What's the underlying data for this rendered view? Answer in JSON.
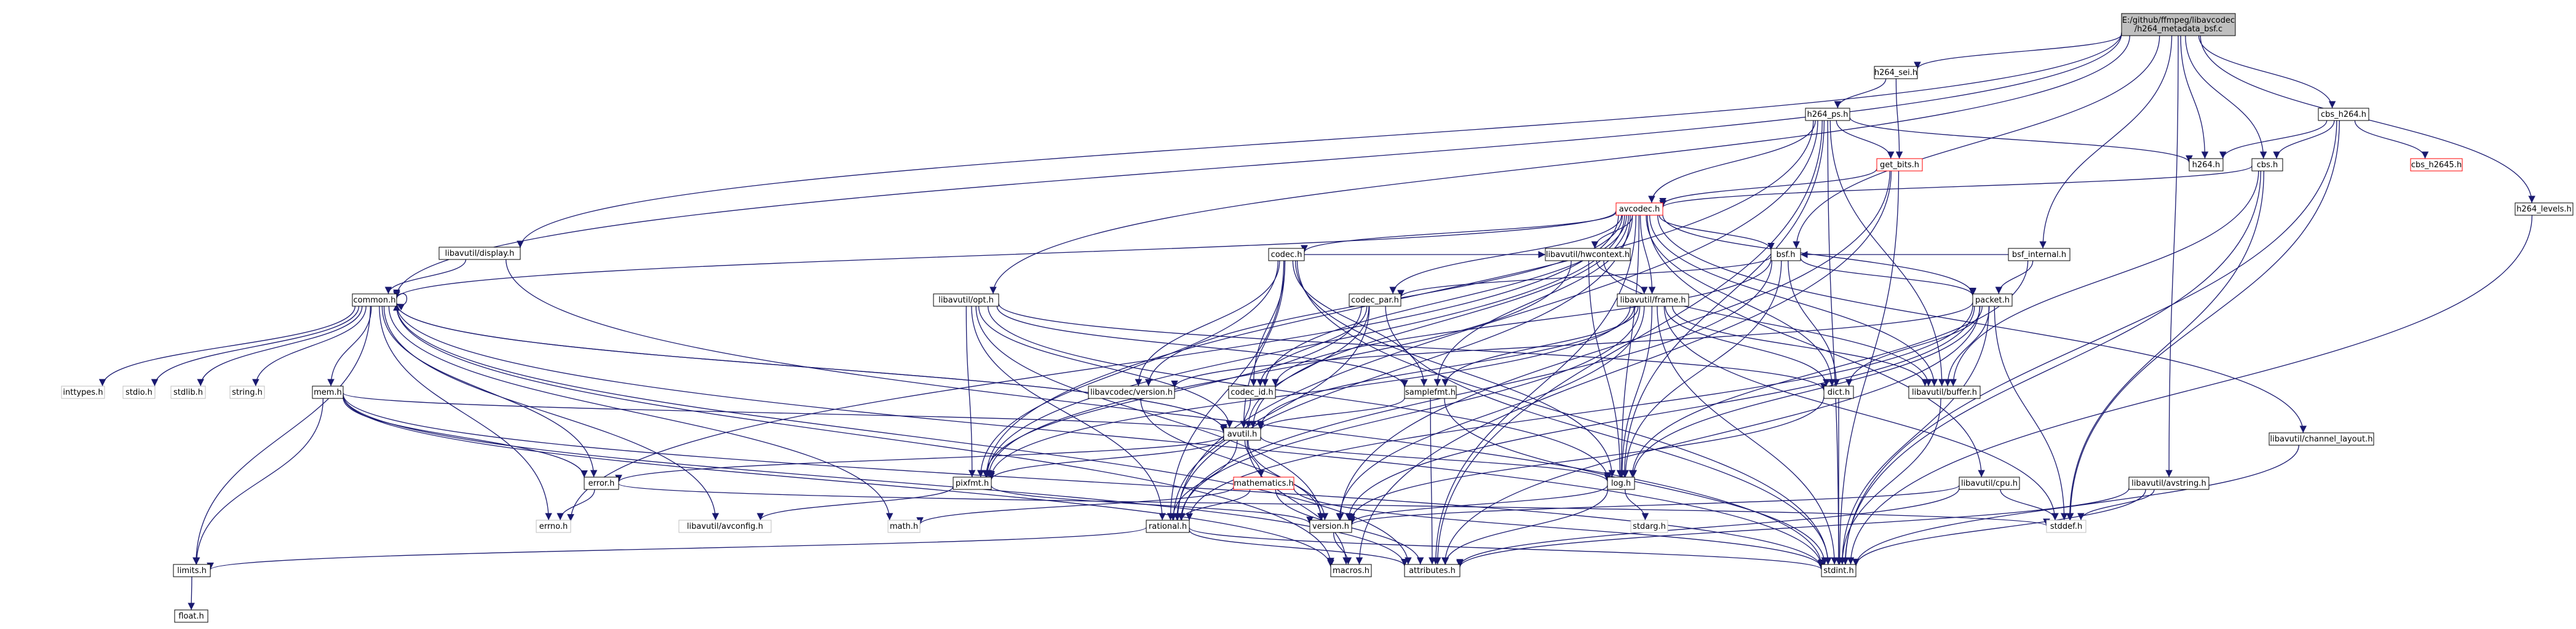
{
  "graph": {
    "root": "E:/github/ffmpeg/libavcodec/h264_metadata_bsf.c",
    "nodes": [
      {
        "id": "root",
        "lines": [
          "E:/github/ffmpeg/libavcodec",
          "/h264_metadata_bsf.c"
        ],
        "style": "root"
      },
      {
        "id": "h264_sei_h",
        "lines": [
          "h264_sei.h"
        ],
        "style": "normal"
      },
      {
        "id": "h264_ps_h",
        "lines": [
          "h264_ps.h"
        ],
        "style": "normal"
      },
      {
        "id": "get_bits_h",
        "lines": [
          "get_bits.h"
        ],
        "style": "red"
      },
      {
        "id": "h264_h",
        "lines": [
          "h264.h"
        ],
        "style": "normal"
      },
      {
        "id": "cbs_h264_h",
        "lines": [
          "cbs_h264.h"
        ],
        "style": "normal"
      },
      {
        "id": "cbs_h",
        "lines": [
          "cbs.h"
        ],
        "style": "normal"
      },
      {
        "id": "cbs_h2645_h",
        "lines": [
          "cbs_h2645.h"
        ],
        "style": "red"
      },
      {
        "id": "h264_levels_h",
        "lines": [
          "h264_levels.h"
        ],
        "style": "normal"
      },
      {
        "id": "avcodec_h",
        "lines": [
          "avcodec.h"
        ],
        "style": "red"
      },
      {
        "id": "bsf_internal_h",
        "lines": [
          "bsf_internal.h"
        ],
        "style": "normal"
      },
      {
        "id": "codec_h",
        "lines": [
          "codec.h"
        ],
        "style": "normal"
      },
      {
        "id": "hwcontext_h",
        "lines": [
          "libavutil/hwcontext.h"
        ],
        "style": "normal"
      },
      {
        "id": "bsf_h",
        "lines": [
          "bsf.h"
        ],
        "style": "normal"
      },
      {
        "id": "display_h",
        "lines": [
          "libavutil/display.h"
        ],
        "style": "normal"
      },
      {
        "id": "common_h",
        "lines": [
          "common.h"
        ],
        "style": "normal"
      },
      {
        "id": "opt_h",
        "lines": [
          "libavutil/opt.h"
        ],
        "style": "normal"
      },
      {
        "id": "codec_par_h",
        "lines": [
          "codec_par.h"
        ],
        "style": "normal"
      },
      {
        "id": "frame_h",
        "lines": [
          "libavutil/frame.h"
        ],
        "style": "normal"
      },
      {
        "id": "packet_h",
        "lines": [
          "packet.h"
        ],
        "style": "normal"
      },
      {
        "id": "lavc_version_h",
        "lines": [
          "libavcodec/version.h"
        ],
        "style": "normal"
      },
      {
        "id": "codec_id_h",
        "lines": [
          "codec_id.h"
        ],
        "style": "normal"
      },
      {
        "id": "samplefmt_h",
        "lines": [
          "samplefmt.h"
        ],
        "style": "normal"
      },
      {
        "id": "dict_h",
        "lines": [
          "dict.h"
        ],
        "style": "normal"
      },
      {
        "id": "buffer_h",
        "lines": [
          "libavutil/buffer.h"
        ],
        "style": "normal"
      },
      {
        "id": "inttypes_h",
        "lines": [
          "inttypes.h"
        ],
        "style": "gray"
      },
      {
        "id": "stdio_h",
        "lines": [
          "stdio.h"
        ],
        "style": "gray"
      },
      {
        "id": "stdlib_h",
        "lines": [
          "stdlib.h"
        ],
        "style": "gray"
      },
      {
        "id": "string_h",
        "lines": [
          "string.h"
        ],
        "style": "gray"
      },
      {
        "id": "mem_h",
        "lines": [
          "mem.h"
        ],
        "style": "normal"
      },
      {
        "id": "avutil_h",
        "lines": [
          "avutil.h"
        ],
        "style": "normal"
      },
      {
        "id": "channel_layout_h",
        "lines": [
          "libavutil/channel_layout.h"
        ],
        "style": "normal"
      },
      {
        "id": "error_h",
        "lines": [
          "error.h"
        ],
        "style": "normal"
      },
      {
        "id": "pixfmt_h",
        "lines": [
          "pixfmt.h"
        ],
        "style": "normal"
      },
      {
        "id": "mathematics_h",
        "lines": [
          "mathematics.h"
        ],
        "style": "red"
      },
      {
        "id": "log_h",
        "lines": [
          "log.h"
        ],
        "style": "normal"
      },
      {
        "id": "cpu_h",
        "lines": [
          "libavutil/cpu.h"
        ],
        "style": "normal"
      },
      {
        "id": "avstring_h",
        "lines": [
          "libavutil/avstring.h"
        ],
        "style": "normal"
      },
      {
        "id": "errno_h",
        "lines": [
          "errno.h"
        ],
        "style": "gray"
      },
      {
        "id": "avconfig_h",
        "lines": [
          "libavutil/avconfig.h"
        ],
        "style": "gray"
      },
      {
        "id": "math_h",
        "lines": [
          "math.h"
        ],
        "style": "gray"
      },
      {
        "id": "version_h",
        "lines": [
          "version.h"
        ],
        "style": "normal"
      },
      {
        "id": "stddef_h",
        "lines": [
          "stddef.h"
        ],
        "style": "gray"
      },
      {
        "id": "stdarg_h",
        "lines": [
          "stdarg.h"
        ],
        "style": "gray"
      },
      {
        "id": "rational_h",
        "lines": [
          "rational.h"
        ],
        "style": "normal"
      },
      {
        "id": "limits_h",
        "lines": [
          "limits.h"
        ],
        "style": "normal"
      },
      {
        "id": "macros_h",
        "lines": [
          "macros.h"
        ],
        "style": "normal"
      },
      {
        "id": "attributes_h",
        "lines": [
          "attributes.h"
        ],
        "style": "normal"
      },
      {
        "id": "stdint_h",
        "lines": [
          "stdint.h"
        ],
        "style": "normal"
      },
      {
        "id": "float_h",
        "lines": [
          "float.h"
        ],
        "style": "normal"
      }
    ],
    "edges": [
      [
        "root",
        "h264_sei_h"
      ],
      [
        "root",
        "common_h"
      ],
      [
        "root",
        "display_h"
      ],
      [
        "root",
        "opt_h"
      ],
      [
        "root",
        "bsf_h"
      ],
      [
        "root",
        "bsf_internal_h"
      ],
      [
        "root",
        "h264_h"
      ],
      [
        "root",
        "cbs_h"
      ],
      [
        "root",
        "cbs_h264_h"
      ],
      [
        "root",
        "h264_levels_h"
      ],
      [
        "root",
        "avstring_h"
      ],
      [
        "h264_sei_h",
        "h264_ps_h"
      ],
      [
        "h264_sei_h",
        "get_bits_h"
      ],
      [
        "h264_ps_h",
        "get_bits_h"
      ],
      [
        "h264_ps_h",
        "avcodec_h"
      ],
      [
        "h264_ps_h",
        "h264_h"
      ],
      [
        "h264_ps_h",
        "pixfmt_h"
      ],
      [
        "h264_ps_h",
        "rational_h"
      ],
      [
        "h264_ps_h",
        "buffer_h"
      ],
      [
        "h264_ps_h",
        "stdint_h"
      ],
      [
        "h264_ps_h",
        "attributes_h"
      ],
      [
        "h264_ps_h",
        "log_h"
      ],
      [
        "get_bits_h",
        "avcodec_h"
      ],
      [
        "get_bits_h",
        "stdint_h"
      ],
      [
        "get_bits_h",
        "macros_h"
      ],
      [
        "get_bits_h",
        "version_h"
      ],
      [
        "cbs_h264_h",
        "cbs_h"
      ],
      [
        "cbs_h264_h",
        "cbs_h2645_h"
      ],
      [
        "cbs_h264_h",
        "h264_h"
      ],
      [
        "cbs_h264_h",
        "stdint_h"
      ],
      [
        "cbs_h264_h",
        "stddef_h"
      ],
      [
        "cbs_h",
        "avcodec_h"
      ],
      [
        "cbs_h",
        "buffer_h"
      ],
      [
        "cbs_h",
        "stddef_h"
      ],
      [
        "cbs_h",
        "stdint_h"
      ],
      [
        "h264_levels_h",
        "stdint_h"
      ],
      [
        "bsf_internal_h",
        "bsf_h"
      ],
      [
        "bsf_internal_h",
        "packet_h"
      ],
      [
        "bsf_internal_h",
        "log_h"
      ],
      [
        "avcodec_h",
        "codec_h"
      ],
      [
        "avcodec_h",
        "hwcontext_h"
      ],
      [
        "avcodec_h",
        "frame_h"
      ],
      [
        "avcodec_h",
        "bsf_h"
      ],
      [
        "avcodec_h",
        "packet_h"
      ],
      [
        "avcodec_h",
        "codec_par_h"
      ],
      [
        "avcodec_h",
        "codec_id_h"
      ],
      [
        "avcodec_h",
        "lavc_version_h"
      ],
      [
        "avcodec_h",
        "samplefmt_h"
      ],
      [
        "avcodec_h",
        "dict_h"
      ],
      [
        "avcodec_h",
        "buffer_h"
      ],
      [
        "avcodec_h",
        "avutil_h"
      ],
      [
        "avcodec_h",
        "log_h"
      ],
      [
        "avcodec_h",
        "pixfmt_h"
      ],
      [
        "avcodec_h",
        "rational_h"
      ],
      [
        "avcodec_h",
        "attributes_h"
      ],
      [
        "avcodec_h",
        "common_h"
      ],
      [
        "avcodec_h",
        "errno_h"
      ],
      [
        "avcodec_h",
        "cpu_h"
      ],
      [
        "avcodec_h",
        "channel_layout_h"
      ],
      [
        "codec_h",
        "hwcontext_h"
      ],
      [
        "codec_h",
        "codec_id_h"
      ],
      [
        "codec_h",
        "lavc_version_h"
      ],
      [
        "codec_h",
        "samplefmt_h"
      ],
      [
        "codec_h",
        "avutil_h"
      ],
      [
        "codec_h",
        "log_h"
      ],
      [
        "codec_h",
        "pixfmt_h"
      ],
      [
        "codec_h",
        "rational_h"
      ],
      [
        "codec_h",
        "stdint_h"
      ],
      [
        "hwcontext_h",
        "frame_h"
      ],
      [
        "hwcontext_h",
        "buffer_h"
      ],
      [
        "hwcontext_h",
        "log_h"
      ],
      [
        "hwcontext_h",
        "pixfmt_h"
      ],
      [
        "bsf_h",
        "codec_par_h"
      ],
      [
        "bsf_h",
        "codec_id_h"
      ],
      [
        "bsf_h",
        "packet_h"
      ],
      [
        "bsf_h",
        "dict_h"
      ],
      [
        "bsf_h",
        "log_h"
      ],
      [
        "bsf_h",
        "rational_h"
      ],
      [
        "frame_h",
        "avutil_h"
      ],
      [
        "frame_h",
        "buffer_h"
      ],
      [
        "frame_h",
        "dict_h"
      ],
      [
        "frame_h",
        "rational_h"
      ],
      [
        "frame_h",
        "samplefmt_h"
      ],
      [
        "frame_h",
        "pixfmt_h"
      ],
      [
        "frame_h",
        "version_h"
      ],
      [
        "frame_h",
        "stddef_h"
      ],
      [
        "frame_h",
        "stdint_h"
      ],
      [
        "frame_h",
        "log_h"
      ],
      [
        "packet_h",
        "buffer_h"
      ],
      [
        "packet_h",
        "dict_h"
      ],
      [
        "packet_h",
        "attributes_h"
      ],
      [
        "packet_h",
        "rational_h"
      ],
      [
        "packet_h",
        "version_h"
      ],
      [
        "packet_h",
        "stddef_h"
      ],
      [
        "packet_h",
        "stdint_h"
      ],
      [
        "packet_h",
        "lavc_version_h"
      ],
      [
        "packet_h",
        "log_h"
      ],
      [
        "codec_par_h",
        "avutil_h"
      ],
      [
        "codec_par_h",
        "codec_id_h"
      ],
      [
        "codec_par_h",
        "pixfmt_h"
      ],
      [
        "codec_par_h",
        "rational_h"
      ],
      [
        "codec_par_h",
        "stdint_h"
      ],
      [
        "opt_h",
        "rational_h"
      ],
      [
        "opt_h",
        "avutil_h"
      ],
      [
        "opt_h",
        "dict_h"
      ],
      [
        "opt_h",
        "log_h"
      ],
      [
        "opt_h",
        "pixfmt_h"
      ],
      [
        "opt_h",
        "samplefmt_h"
      ],
      [
        "opt_h",
        "version_h"
      ],
      [
        "display_h",
        "common_h"
      ],
      [
        "display_h",
        "stdint_h"
      ],
      [
        "common_h",
        "common_h"
      ],
      [
        "common_h",
        "inttypes_h"
      ],
      [
        "common_h",
        "stdio_h"
      ],
      [
        "common_h",
        "stdlib_h"
      ],
      [
        "common_h",
        "string_h"
      ],
      [
        "common_h",
        "mem_h"
      ],
      [
        "common_h",
        "avutil_h"
      ],
      [
        "common_h",
        "error_h"
      ],
      [
        "common_h",
        "errno_h"
      ],
      [
        "common_h",
        "avconfig_h"
      ],
      [
        "common_h",
        "math_h"
      ],
      [
        "common_h",
        "limits_h"
      ],
      [
        "common_h",
        "stdint_h"
      ],
      [
        "common_h",
        "attributes_h"
      ],
      [
        "common_h",
        "macros_h"
      ],
      [
        "mem_h",
        "avutil_h"
      ],
      [
        "mem_h",
        "error_h"
      ],
      [
        "mem_h",
        "limits_h"
      ],
      [
        "mem_h",
        "stdint_h"
      ],
      [
        "mem_h",
        "attributes_h"
      ],
      [
        "mem_h",
        "macros_h"
      ],
      [
        "lavc_version_h",
        "version_h"
      ],
      [
        "codec_id_h",
        "avutil_h"
      ],
      [
        "samplefmt_h",
        "avutil_h"
      ],
      [
        "samplefmt_h",
        "attributes_h"
      ],
      [
        "samplefmt_h",
        "stdint_h"
      ],
      [
        "dict_h",
        "stdint_h"
      ],
      [
        "dict_h",
        "version_h"
      ],
      [
        "buffer_h",
        "stdint_h"
      ],
      [
        "avutil_h",
        "common_h"
      ],
      [
        "avutil_h",
        "error_h"
      ],
      [
        "avutil_h",
        "mathematics_h"
      ],
      [
        "avutil_h",
        "rational_h"
      ],
      [
        "avutil_h",
        "version_h"
      ],
      [
        "avutil_h",
        "macros_h"
      ],
      [
        "avutil_h",
        "log_h"
      ],
      [
        "avutil_h",
        "pixfmt_h"
      ],
      [
        "mathematics_h",
        "math_h"
      ],
      [
        "mathematics_h",
        "rational_h"
      ],
      [
        "mathematics_h",
        "attributes_h"
      ],
      [
        "mathematics_h",
        "stdint_h"
      ],
      [
        "error_h",
        "errno_h"
      ],
      [
        "error_h",
        "stddef_h"
      ],
      [
        "pixfmt_h",
        "avconfig_h"
      ],
      [
        "pixfmt_h",
        "version_h"
      ],
      [
        "log_h",
        "stdarg_h"
      ],
      [
        "log_h",
        "attributes_h"
      ],
      [
        "log_h",
        "version_h"
      ],
      [
        "version_h",
        "macros_h"
      ],
      [
        "rational_h",
        "limits_h"
      ],
      [
        "rational_h",
        "attributes_h"
      ],
      [
        "rational_h",
        "stdint_h"
      ],
      [
        "cpu_h",
        "stddef_h"
      ],
      [
        "cpu_h",
        "attributes_h"
      ],
      [
        "cpu_h",
        "version_h"
      ],
      [
        "avstring_h",
        "stddef_h"
      ],
      [
        "avstring_h",
        "stdint_h"
      ],
      [
        "avstring_h",
        "attributes_h"
      ],
      [
        "channel_layout_h",
        "stdint_h"
      ],
      [
        "limits_h",
        "float_h"
      ]
    ]
  },
  "colors": {
    "edge": "#191970",
    "node_border": "#000000",
    "node_fill": "#ffffff",
    "root_fill": "#bfbfbf",
    "red_border": "#ff0000",
    "gray_border": "#bfbfbf"
  }
}
